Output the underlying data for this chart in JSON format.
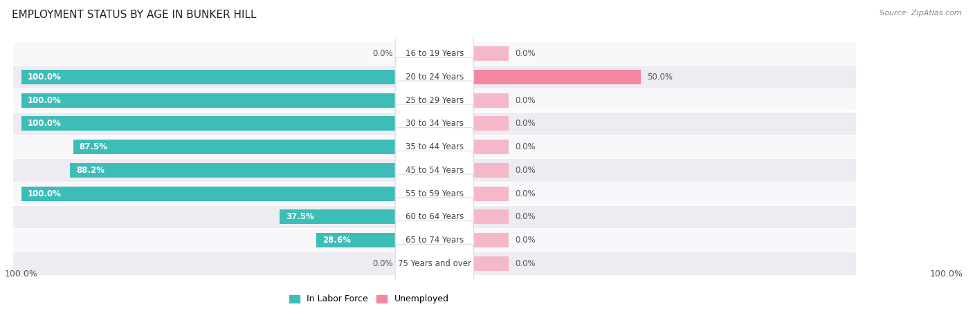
{
  "title": "EMPLOYMENT STATUS BY AGE IN BUNKER HILL",
  "source": "Source: ZipAtlas.com",
  "age_groups": [
    "16 to 19 Years",
    "20 to 24 Years",
    "25 to 29 Years",
    "30 to 34 Years",
    "35 to 44 Years",
    "45 to 54 Years",
    "55 to 59 Years",
    "60 to 64 Years",
    "65 to 74 Years",
    "75 Years and over"
  ],
  "labor_force": [
    0.0,
    100.0,
    100.0,
    100.0,
    87.5,
    88.2,
    100.0,
    37.5,
    28.6,
    0.0
  ],
  "unemployed": [
    0.0,
    50.0,
    0.0,
    0.0,
    0.0,
    0.0,
    0.0,
    0.0,
    0.0,
    0.0
  ],
  "labor_force_color": "#3DBDB8",
  "unemployed_color": "#F2879F",
  "unemployed_stub_color": "#F5B8C8",
  "row_bg_alt": "#EEECf2",
  "row_bg_normal": "#F8F7FA",
  "label_pill_color": "#FFFFFF",
  "text_color_white": "#FFFFFF",
  "text_color_dark": "#555555",
  "text_color_label": "#444444",
  "max_val": 100.0,
  "stub_val": 18.0,
  "legend_labels": [
    "In Labor Force",
    "Unemployed"
  ],
  "legend_colors": [
    "#3DBDB8",
    "#F2879F"
  ],
  "label_axis_left": "100.0%",
  "label_axis_right": "100.0%"
}
